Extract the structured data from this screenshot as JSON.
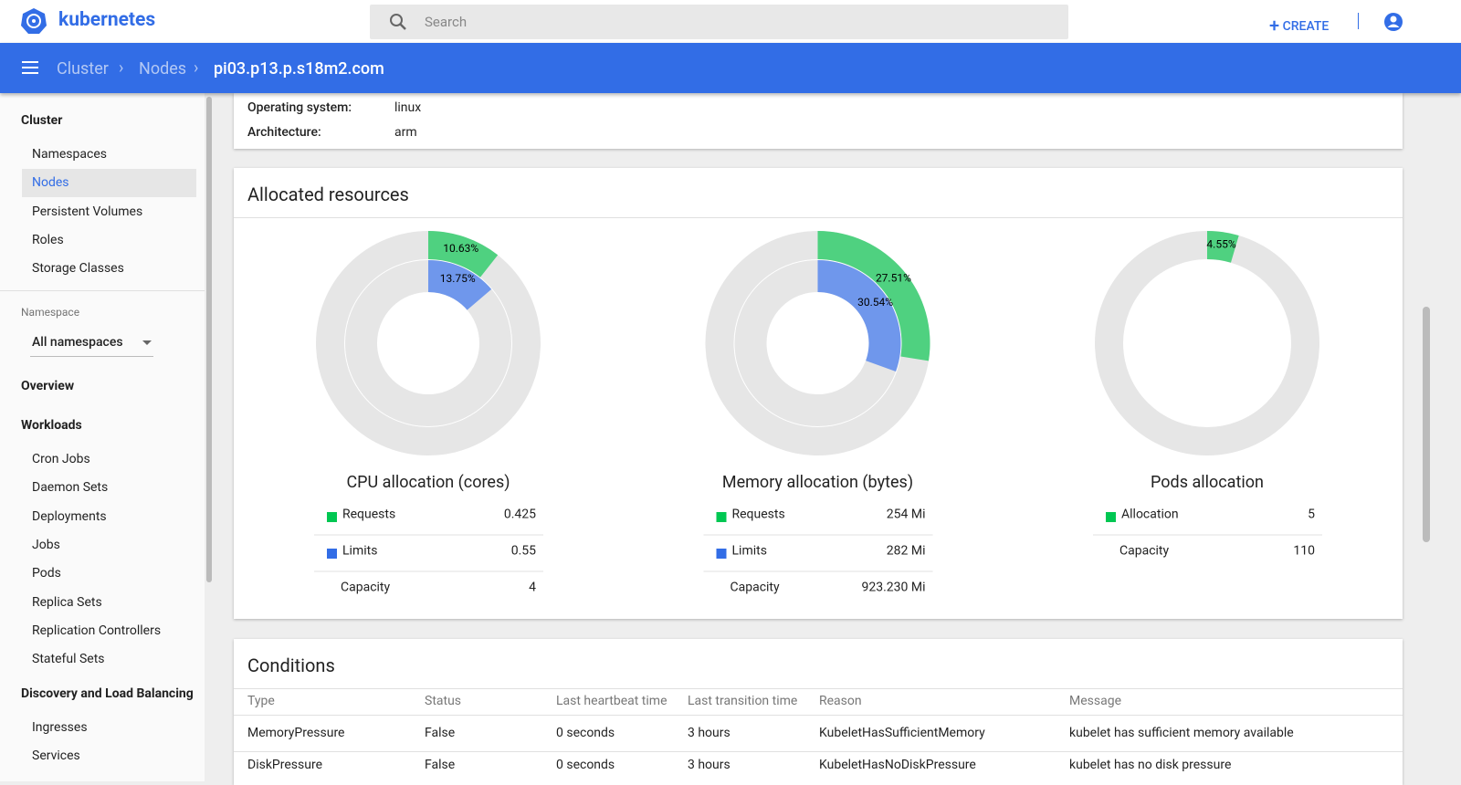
{
  "header": {
    "brand": "kubernetes",
    "search_placeholder": "Search",
    "create": "CREATE"
  },
  "breadcrumb": {
    "items": [
      "Cluster",
      "Nodes"
    ],
    "current": "pi03.p13.p.s18m2.com"
  },
  "sidebar": {
    "cluster": {
      "title": "Cluster",
      "items": [
        "Namespaces",
        "Nodes",
        "Persistent Volumes",
        "Roles",
        "Storage Classes"
      ]
    },
    "namespace": {
      "label": "Namespace",
      "value": "All namespaces"
    },
    "overview": "Overview",
    "workloads": {
      "title": "Workloads",
      "items": [
        "Cron Jobs",
        "Daemon Sets",
        "Deployments",
        "Jobs",
        "Pods",
        "Replica Sets",
        "Replication Controllers",
        "Stateful Sets"
      ]
    },
    "discovery": {
      "title": "Discovery and Load Balancing",
      "items": [
        "Ingresses",
        "Services"
      ]
    }
  },
  "details": {
    "rows": [
      [
        "Operating system:",
        "linux"
      ],
      [
        "Architecture:",
        "arm"
      ]
    ]
  },
  "allocated": {
    "title": "Allocated resources",
    "charts": [
      {
        "title": "CPU allocation (cores)",
        "values": [
          10.63,
          13.75
        ],
        "value_labels": [
          "10.63%",
          "13.75%"
        ],
        "legend": [
          [
            "Requests",
            "0.425"
          ],
          [
            "Limits",
            "0.55"
          ],
          [
            "Capacity",
            "4"
          ]
        ]
      },
      {
        "title": "Memory allocation (bytes)",
        "values": [
          27.51,
          30.54
        ],
        "value_labels": [
          "27.51%",
          "30.54%"
        ],
        "legend": [
          [
            "Requests",
            "254 Mi"
          ],
          [
            "Limits",
            "282 Mi"
          ],
          [
            "Capacity",
            "923.230 Mi"
          ]
        ]
      },
      {
        "title": "Pods allocation",
        "values": [
          4.55
        ],
        "value_labels": [
          "4.55%"
        ],
        "legend": [
          [
            "Allocation",
            "5"
          ],
          [
            "Capacity",
            "110"
          ]
        ]
      }
    ]
  },
  "conditions": {
    "title": "Conditions",
    "columns": [
      "Type",
      "Status",
      "Last heartbeat time",
      "Last transition time",
      "Reason",
      "Message"
    ],
    "rows": [
      [
        "MemoryPressure",
        "False",
        "0 seconds",
        "3 hours",
        "KubeletHasSufficientMemory",
        "kubelet has sufficient memory available"
      ],
      [
        "DiskPressure",
        "False",
        "0 seconds",
        "3 hours",
        "KubeletHasNoDiskPressure",
        "kubelet has no disk pressure"
      ]
    ]
  }
}
